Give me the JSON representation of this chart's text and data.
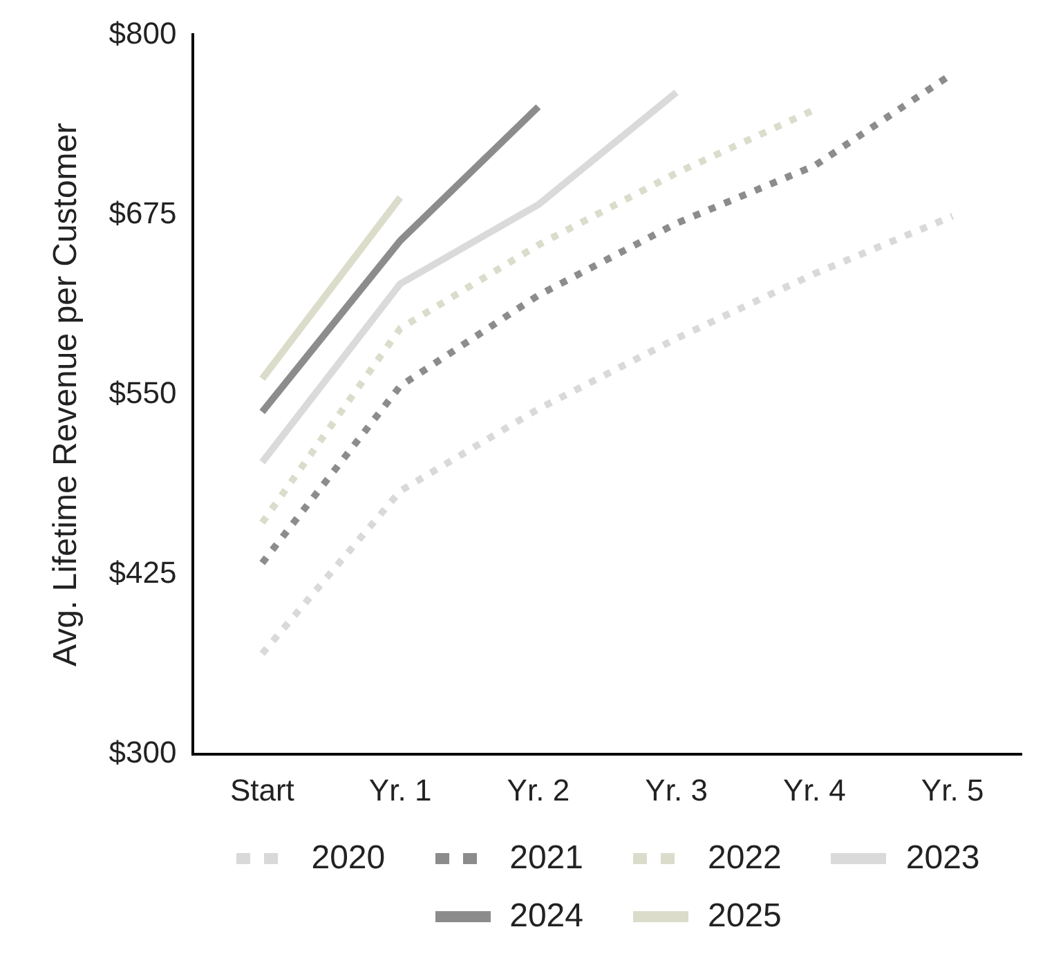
{
  "chart_data": {
    "type": "line",
    "ylabel": "Avg. Lifetime Revenue per Customer",
    "categories": [
      "Start",
      "Yr. 1",
      "Yr. 2",
      "Yr. 3",
      "Yr. 4",
      "Yr. 5"
    ],
    "series": [
      {
        "name": "2020",
        "color": "#d9d9d9",
        "line_style": "dotted",
        "values": [
          370,
          483,
          540,
          589,
          634,
          674
        ]
      },
      {
        "name": "2021",
        "color": "#8c8c8c",
        "line_style": "dotted",
        "values": [
          433,
          556,
          619,
          669,
          709,
          773
        ]
      },
      {
        "name": "2022",
        "color": "#dcdccc",
        "line_style": "dotted",
        "values": [
          461,
          596,
          654,
          704,
          748,
          null
        ]
      },
      {
        "name": "2023",
        "color": "#dadada",
        "line_style": "solid",
        "values": [
          503,
          627,
          682,
          760,
          null,
          null
        ]
      },
      {
        "name": "2024",
        "color": "#8c8c8c",
        "line_style": "solid",
        "values": [
          538,
          657,
          750,
          null,
          null,
          null
        ]
      },
      {
        "name": "2025",
        "color": "#dcdccb",
        "line_style": "solid",
        "values": [
          561,
          687,
          null,
          null,
          null,
          null
        ]
      }
    ],
    "ylim": [
      300,
      800
    ],
    "yticks": [
      {
        "value": 300,
        "label": "$300"
      },
      {
        "value": 425,
        "label": "$425"
      },
      {
        "value": 550,
        "label": "$550"
      },
      {
        "value": 675,
        "label": "$675"
      },
      {
        "value": 800,
        "label": "$800"
      }
    ],
    "grid": false,
    "legend": "bottom",
    "marker": "none"
  }
}
